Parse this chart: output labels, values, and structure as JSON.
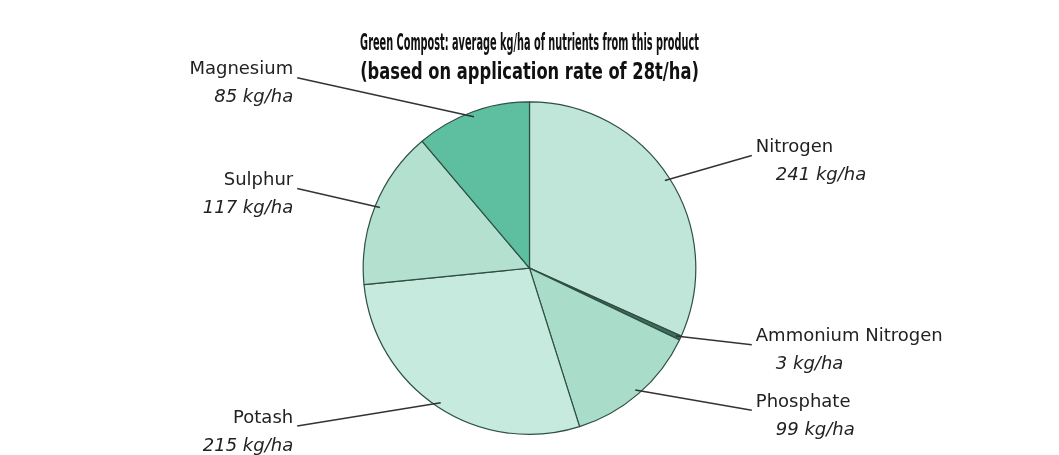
{
  "chart_data": {
    "type": "pie",
    "title": "Green Compost: average kg/ha of nutrients from this product",
    "subtitle": "(based on application rate of 28t/ha)",
    "categories": [
      "Nitrogen",
      "Ammonium Nitrogen",
      "Phosphate",
      "Potash",
      "Sulphur",
      "Magnesium"
    ],
    "values": [
      241,
      3,
      99,
      215,
      117,
      85
    ],
    "value_labels": [
      "241 kg/ha",
      "3 kg/ha",
      "99 kg/ha",
      "215 kg/ha",
      "117 kg/ha",
      "85 kg/ha"
    ],
    "colors": [
      "#bfe6d8",
      "#3f6f5f",
      "#a9dcc9",
      "#c6eadd",
      "#b4e0cf",
      "#5dbf9f"
    ],
    "legend": false
  }
}
